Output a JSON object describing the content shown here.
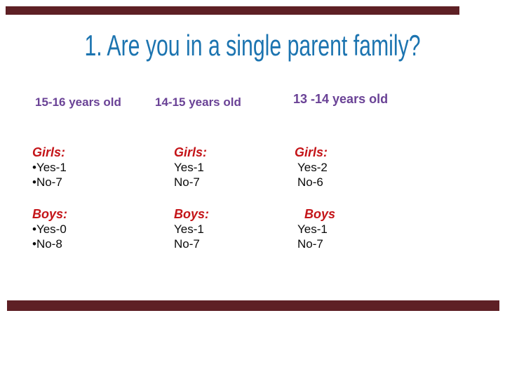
{
  "slide": {
    "title": "1. Are you in a single parent family?",
    "columns": [
      {
        "header": "15-16 years old",
        "girls": {
          "label": "Girls:",
          "lines": [
            "•Yes-1",
            "•No-7"
          ]
        },
        "boys": {
          "label": "Boys:",
          "lines": [
            "•Yes-0",
            "•No-8"
          ]
        }
      },
      {
        "header": "14-15 years old",
        "girls": {
          "label": "Girls:",
          "lines": [
            "Yes-1",
            "No-7"
          ]
        },
        "boys": {
          "label": "Boys:",
          "lines": [
            "Yes-1",
            "No-7"
          ]
        }
      },
      {
        "header": "13 -14 years old",
        "girls": {
          "label": "Girls:",
          "lines": [
            "Yes-2",
            "No-6"
          ]
        },
        "boys": {
          "label": "Boys",
          "lines": [
            "Yes-1",
            "No-7"
          ]
        }
      }
    ],
    "colors": {
      "title_blue": "#1c74b0",
      "header_purple": "#6a4296",
      "label_red": "#c41418",
      "value_black": "#0a0a0a",
      "bar_maroon": "#5e2025",
      "background": "#ffffff"
    }
  }
}
